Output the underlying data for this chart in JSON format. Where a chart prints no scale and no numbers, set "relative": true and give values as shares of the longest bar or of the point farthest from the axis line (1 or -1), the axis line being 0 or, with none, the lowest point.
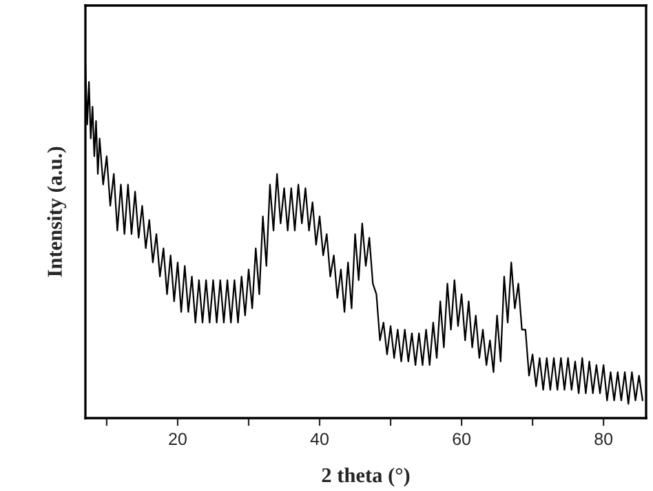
{
  "chart_data": {
    "type": "line",
    "relative": true,
    "xlabel": "2 theta (°)",
    "ylabel": "Intensity (a.u.)",
    "xlim": [
      7,
      86
    ],
    "xticks": [
      {
        "value": 10,
        "label": null
      },
      20,
      {
        "value": 30,
        "label": null
      },
      40,
      {
        "value": 50,
        "label": null
      },
      60,
      {
        "value": 70,
        "label": null
      },
      80
    ],
    "tick_labels": "x",
    "grid": false,
    "legend": false,
    "marker": "none",
    "line_style": "solid",
    "x": [
      7,
      7.25,
      7.5,
      7.75,
      8,
      8.25,
      8.5,
      8.75,
      9,
      9.5,
      10,
      10.5,
      11,
      11.5,
      12,
      12.5,
      13,
      13.5,
      14,
      14.5,
      15,
      15.5,
      16,
      16.5,
      17,
      17.5,
      18,
      18.5,
      19,
      19.5,
      20,
      20.5,
      21,
      21.5,
      22,
      22.5,
      23,
      23.5,
      24,
      24.5,
      25,
      25.5,
      26,
      26.5,
      27,
      27.5,
      28,
      28.5,
      29,
      29.5,
      30,
      30.5,
      31,
      31.5,
      32,
      32.5,
      33,
      33.5,
      34,
      34.5,
      35,
      35.5,
      36,
      36.5,
      37,
      37.5,
      38,
      38.5,
      39,
      39.5,
      40,
      40.5,
      41,
      41.5,
      42,
      42.5,
      43,
      43.5,
      44,
      44.5,
      45,
      45.5,
      46,
      46.5,
      47,
      47.5,
      48,
      48.5,
      49,
      49.5,
      50,
      50.5,
      51,
      51.5,
      52,
      52.5,
      53,
      53.5,
      54,
      54.5,
      55,
      55.5,
      56,
      56.5,
      57,
      57.5,
      58,
      58.5,
      59,
      59.5,
      60,
      60.5,
      61,
      61.5,
      62,
      62.5,
      63,
      63.5,
      64,
      64.5,
      65,
      65.5,
      66,
      66.5,
      67,
      67.5,
      68,
      68.5,
      69,
      69.5,
      70,
      70.5,
      71,
      71.5,
      72,
      72.5,
      73,
      73.5,
      74,
      74.5,
      75,
      75.5,
      76,
      76.5,
      77,
      77.5,
      78,
      78.5,
      79,
      79.5,
      80,
      80.5,
      81,
      81.5,
      82,
      82.5,
      83,
      83.5,
      84,
      84.5,
      85,
      85.5
    ],
    "series": [
      {
        "color": "#000000",
        "values": [
          1.0,
          0.83,
          0.95,
          0.79,
          0.88,
          0.74,
          0.84,
          0.69,
          0.79,
          0.66,
          0.74,
          0.6,
          0.69,
          0.53,
          0.66,
          0.52,
          0.66,
          0.52,
          0.64,
          0.51,
          0.6,
          0.48,
          0.56,
          0.44,
          0.52,
          0.4,
          0.48,
          0.35,
          0.46,
          0.33,
          0.44,
          0.3,
          0.43,
          0.3,
          0.4,
          0.27,
          0.39,
          0.27,
          0.39,
          0.27,
          0.39,
          0.27,
          0.39,
          0.27,
          0.39,
          0.27,
          0.39,
          0.27,
          0.4,
          0.29,
          0.42,
          0.31,
          0.48,
          0.35,
          0.57,
          0.43,
          0.66,
          0.53,
          0.69,
          0.55,
          0.65,
          0.53,
          0.65,
          0.53,
          0.66,
          0.55,
          0.65,
          0.53,
          0.61,
          0.49,
          0.57,
          0.46,
          0.52,
          0.4,
          0.46,
          0.34,
          0.42,
          0.3,
          0.44,
          0.31,
          0.52,
          0.39,
          0.55,
          0.43,
          0.51,
          0.38,
          0.35,
          0.22,
          0.27,
          0.18,
          0.26,
          0.17,
          0.25,
          0.16,
          0.25,
          0.16,
          0.24,
          0.15,
          0.24,
          0.15,
          0.25,
          0.15,
          0.27,
          0.17,
          0.33,
          0.2,
          0.38,
          0.25,
          0.39,
          0.26,
          0.35,
          0.22,
          0.33,
          0.2,
          0.29,
          0.17,
          0.25,
          0.15,
          0.22,
          0.13,
          0.29,
          0.16,
          0.4,
          0.27,
          0.44,
          0.31,
          0.38,
          0.25,
          0.25,
          0.12,
          0.18,
          0.09,
          0.17,
          0.08,
          0.17,
          0.08,
          0.17,
          0.08,
          0.17,
          0.08,
          0.17,
          0.08,
          0.16,
          0.07,
          0.17,
          0.07,
          0.16,
          0.07,
          0.15,
          0.07,
          0.15,
          0.05,
          0.13,
          0.05,
          0.13,
          0.05,
          0.13,
          0.04,
          0.13,
          0.05,
          0.12,
          0.05
        ]
      }
    ]
  }
}
